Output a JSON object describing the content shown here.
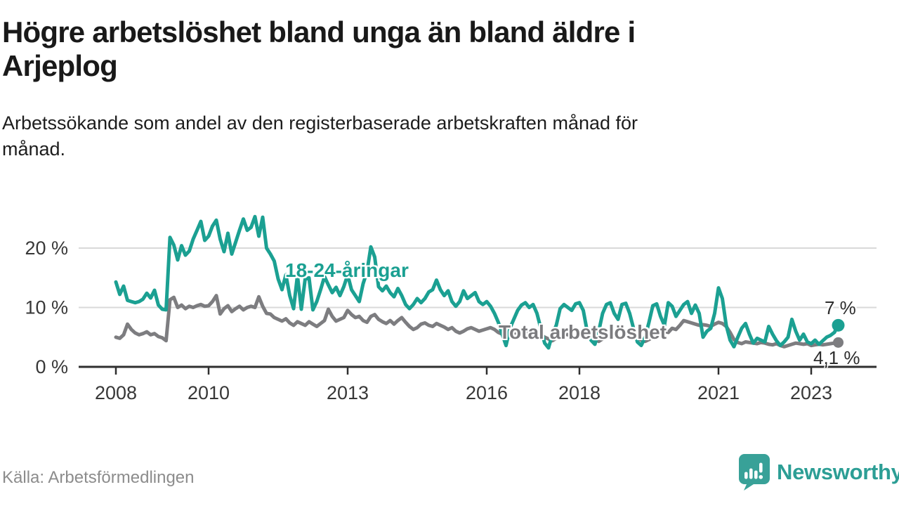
{
  "header": {
    "title_line1": "Högre arbetslöshet bland unga än bland äldre i",
    "title_line2": "Arjeplog",
    "subtitle_line1": "Arbetssökande som andel av den registerbaserade arbetskraften månad för",
    "subtitle_line2": "månad."
  },
  "chart_data": {
    "type": "line",
    "title": "Högre arbetslöshet bland unga än bland äldre i Arjeplog",
    "subtitle": "Arbetssökande som andel av den registerbaserade arbetskraften månad för månad.",
    "frequency": "monthly",
    "x_start": "2008-01",
    "x_end": "2023-08",
    "ylim": [
      0,
      26.5
    ],
    "grid": "horizontal",
    "unit": "%",
    "y_ticks": [
      {
        "value": 0,
        "label": "0 %"
      },
      {
        "value": 10,
        "label": "10 %"
      },
      {
        "value": 20,
        "label": "20 %"
      }
    ],
    "x_ticks": [
      {
        "year": 2008,
        "label": "2008"
      },
      {
        "year": 2010,
        "label": "2010"
      },
      {
        "year": 2013,
        "label": "2013"
      },
      {
        "year": 2016,
        "label": "2016"
      },
      {
        "year": 2018,
        "label": "2018"
      },
      {
        "year": 2021,
        "label": "2021"
      },
      {
        "year": 2023,
        "label": "2023"
      }
    ],
    "series": [
      {
        "name": "18-24-åringar",
        "color": "#1ba092",
        "end_label": "7 %",
        "end_value": 7.0,
        "values": [
          14.3,
          12.2,
          13.6,
          11.2,
          11.0,
          10.8,
          11.0,
          11.4,
          12.4,
          11.6,
          12.9,
          10.4,
          9.7,
          9.6,
          21.8,
          20.5,
          18.0,
          20.4,
          18.8,
          19.5,
          21.5,
          23.0,
          24.5,
          21.3,
          22.0,
          23.7,
          24.7,
          21.5,
          19.4,
          22.5,
          19.0,
          21.0,
          23.0,
          24.9,
          23.0,
          23.5,
          25.3,
          22.0,
          25.2,
          20.0,
          19.0,
          17.8,
          14.8,
          13.0,
          15.5,
          12.0,
          9.8,
          15.4,
          9.7,
          14.8,
          15.0,
          9.6,
          11.0,
          13.0,
          15.2,
          13.8,
          12.5,
          13.4,
          12.0,
          13.5,
          15.5,
          13.0,
          12.0,
          11.0,
          14.0,
          16.0,
          20.2,
          18.5,
          13.5,
          12.8,
          13.6,
          12.5,
          11.8,
          13.2,
          12.0,
          10.5,
          9.8,
          10.5,
          11.5,
          10.8,
          11.5,
          12.6,
          13.0,
          14.6,
          13.0,
          12.0,
          12.8,
          11.0,
          10.2,
          11.0,
          12.8,
          11.5,
          12.0,
          12.5,
          11.0,
          10.5,
          11.0,
          10.2,
          9.0,
          7.5,
          5.5,
          3.6,
          6.5,
          8.0,
          9.5,
          10.4,
          10.8,
          10.0,
          10.5,
          9.0,
          6.5,
          4.0,
          3.2,
          5.5,
          7.0,
          9.8,
          10.5,
          10.0,
          9.5,
          10.6,
          10.8,
          9.5,
          6.0,
          4.5,
          3.8,
          6.0,
          9.0,
          10.5,
          10.8,
          9.0,
          8.0,
          10.5,
          10.7,
          9.0,
          6.5,
          4.2,
          3.6,
          5.0,
          7.5,
          10.3,
          10.6,
          8.5,
          7.0,
          10.8,
          10.2,
          8.5,
          9.5,
          10.5,
          11.0,
          9.0,
          10.4,
          9.0,
          5.0,
          6.0,
          6.5,
          9.0,
          13.3,
          11.5,
          7.0,
          4.5,
          3.4,
          5.0,
          6.5,
          7.3,
          5.5,
          4.0,
          4.8,
          4.5,
          4.2,
          6.8,
          5.5,
          4.4,
          3.6,
          4.2,
          5.0,
          8.0,
          6.0,
          4.5,
          5.5,
          4.2,
          3.9,
          4.5,
          3.8,
          4.4,
          5.0,
          5.3,
          5.8,
          7.0
        ]
      },
      {
        "name": "Total arbetslöshet",
        "color": "#7d7d80",
        "end_label": "4,1 %",
        "end_value": 4.1,
        "values": [
          5.0,
          4.8,
          5.4,
          7.2,
          6.3,
          5.7,
          5.4,
          5.6,
          5.9,
          5.4,
          5.6,
          5.1,
          4.9,
          4.4,
          11.3,
          11.7,
          10.0,
          10.4,
          9.8,
          10.2,
          10.0,
          10.3,
          10.5,
          10.2,
          10.3,
          11.0,
          12.0,
          8.9,
          9.8,
          10.3,
          9.3,
          9.8,
          10.2,
          9.6,
          10.0,
          10.2,
          10.0,
          11.8,
          10.2,
          9.0,
          8.9,
          8.3,
          8.0,
          7.7,
          8.1,
          7.4,
          7.0,
          7.6,
          7.3,
          7.0,
          7.6,
          7.2,
          6.8,
          7.3,
          7.8,
          9.7,
          8.5,
          7.7,
          8.0,
          8.3,
          9.5,
          8.8,
          8.3,
          8.5,
          7.8,
          7.5,
          8.5,
          8.8,
          8.0,
          7.6,
          7.3,
          7.8,
          7.2,
          7.8,
          8.3,
          7.5,
          6.8,
          6.3,
          6.6,
          7.2,
          7.4,
          7.0,
          6.8,
          7.3,
          7.0,
          6.7,
          6.3,
          6.6,
          6.0,
          5.7,
          6.0,
          6.4,
          6.6,
          6.3,
          6.0,
          6.2,
          6.4,
          6.6,
          6.3,
          5.8,
          5.5,
          5.2,
          5.5,
          5.8,
          5.6,
          5.4,
          5.6,
          5.8,
          5.5,
          5.7,
          5.4,
          5.0,
          4.7,
          4.4,
          4.8,
          5.2,
          5.6,
          5.4,
          5.2,
          5.0,
          5.3,
          5.5,
          5.2,
          4.9,
          4.6,
          4.3,
          4.7,
          5.1,
          5.4,
          5.2,
          5.0,
          4.8,
          5.2,
          5.4,
          5.1,
          4.8,
          4.5,
          4.3,
          4.6,
          5.0,
          5.8,
          6.2,
          6.0,
          5.8,
          6.5,
          6.3,
          7.0,
          7.8,
          7.6,
          7.4,
          7.2,
          7.0,
          7.1,
          7.0,
          6.8,
          7.2,
          7.5,
          7.3,
          6.8,
          5.8,
          4.6,
          4.1,
          3.9,
          4.2,
          4.1,
          4.0,
          3.9,
          4.1,
          4.0,
          3.8,
          3.7,
          3.9,
          3.6,
          3.4,
          3.6,
          3.8,
          4.0,
          3.9,
          3.8,
          3.9,
          3.6,
          3.7,
          3.8,
          3.7,
          3.8,
          3.9,
          4.0,
          4.1
        ]
      }
    ]
  },
  "colors": {
    "accent_teal": "#1ba092",
    "line_gray": "#7d7d80",
    "gridline": "#d9d9d9",
    "axis": "#2f2f2f",
    "brand_teal": "#2c9e95"
  },
  "footer": {
    "source": "Källa: Arbetsförmedlingen",
    "brand": "Newsworthy"
  }
}
